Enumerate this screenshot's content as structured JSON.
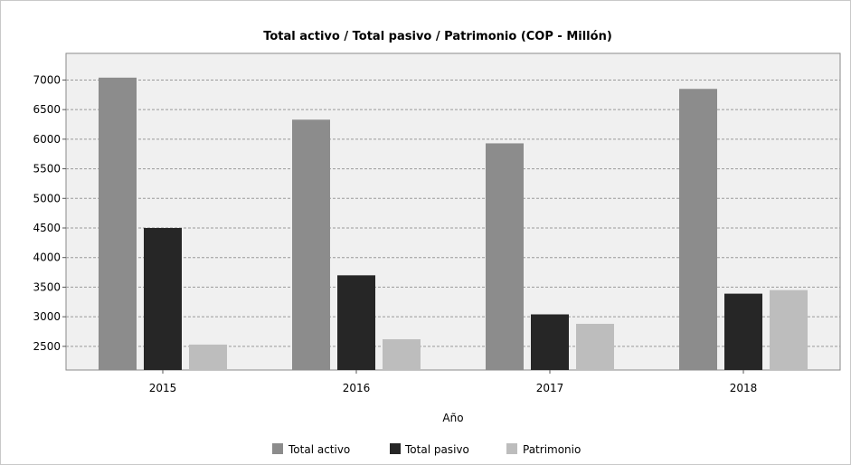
{
  "chart_data": {
    "type": "bar",
    "title": "Total activo / Total pasivo / Patrimonio (COP - Millón)",
    "xlabel": "Año",
    "ylabel": "",
    "categories": [
      "2015",
      "2016",
      "2017",
      "2018"
    ],
    "ylim": [
      2100,
      7450
    ],
    "yticks": [
      2500,
      3000,
      3500,
      4000,
      4500,
      5000,
      5500,
      6000,
      6500,
      7000
    ],
    "grid": true,
    "legend_position": "bottom",
    "series": [
      {
        "name": "Total activo",
        "color": "#8c8c8c",
        "values": [
          7040,
          6330,
          5930,
          6850
        ]
      },
      {
        "name": "Total pasivo",
        "color": "#262626",
        "values": [
          4500,
          3700,
          3040,
          3390
        ]
      },
      {
        "name": "Patrimonio",
        "color": "#bdbdbd",
        "values": [
          2530,
          2620,
          2880,
          3450
        ]
      }
    ]
  }
}
